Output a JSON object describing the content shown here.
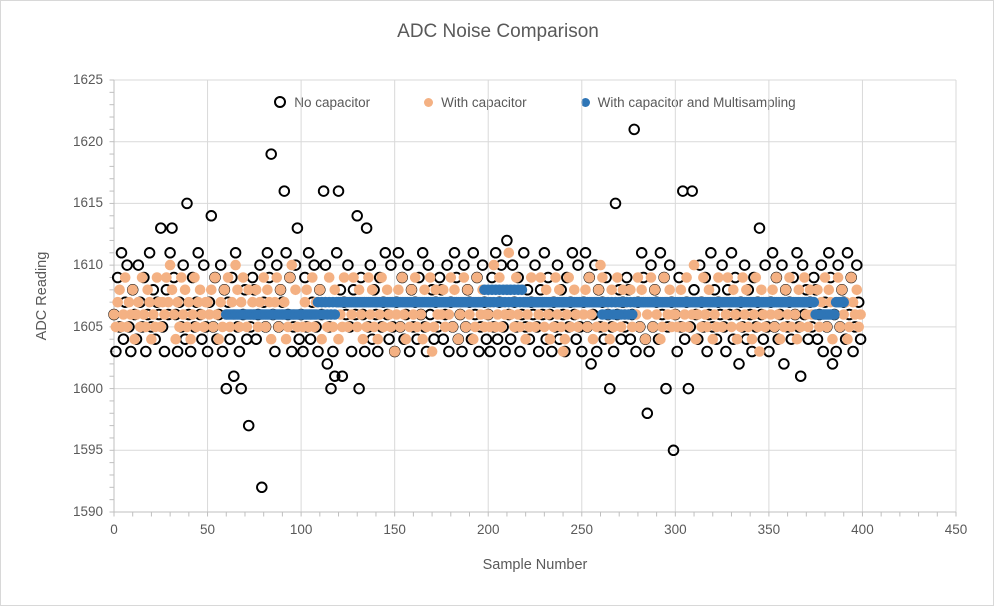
{
  "colors": {
    "background": "#FFFFFF",
    "border": "#D8D8D8",
    "text": "#595959",
    "grid": "#D9D9D9",
    "axis": "#BFBFBF",
    "series_no_capacitor": "#000000",
    "series_with_capacitor": "#F4B183",
    "series_multisampling": "#2E75B6"
  },
  "chart_data": {
    "type": "scatter",
    "title": "ADC Noise Comparison",
    "xlabel": "Sample Number",
    "ylabel": "ADC Reading",
    "xlim": [
      0,
      450
    ],
    "ylim": [
      1590,
      1625
    ],
    "x_major_ticks": [
      0,
      50,
      100,
      150,
      200,
      250,
      300,
      350,
      400,
      450
    ],
    "y_major_ticks": [
      1590,
      1595,
      1600,
      1605,
      1610,
      1615,
      1620,
      1625
    ],
    "x_minor_step": 10,
    "y_minor_step": 1,
    "grid": true,
    "legend_position": "top-center",
    "series": [
      {
        "name": "No capacitor",
        "marker": "open-circle",
        "color": "#000000",
        "x_start": 0,
        "x_step": 1,
        "values": [
          1606,
          1603,
          1609,
          1605,
          1611,
          1604,
          1607,
          1610,
          1605,
          1603,
          1608,
          1606,
          1604,
          1610,
          1607,
          1605,
          1609,
          1603,
          1606,
          1611,
          1605,
          1608,
          1604,
          1607,
          1606,
          1613,
          1605,
          1603,
          1608,
          1606,
          1611,
          1613,
          1609,
          1606,
          1603,
          1607,
          1605,
          1610,
          1604,
          1615,
          1606,
          1603,
          1609,
          1605,
          1607,
          1611,
          1606,
          1604,
          1610,
          1605,
          1603,
          1607,
          1614,
          1605,
          1609,
          1604,
          1606,
          1610,
          1603,
          1608,
          1600,
          1607,
          1604,
          1609,
          1601,
          1611,
          1605,
          1603,
          1600,
          1606,
          1608,
          1604,
          1597,
          1605,
          1609,
          1608,
          1604,
          1606,
          1610,
          1592,
          1607,
          1605,
          1611,
          1609,
          1619,
          1606,
          1603,
          1610,
          1605,
          1608,
          1607,
          1616,
          1611,
          1606,
          1609,
          1603,
          1605,
          1610,
          1613,
          1604,
          1606,
          1603,
          1609,
          1605,
          1611,
          1604,
          1607,
          1610,
          1605,
          1603,
          1608,
          1606,
          1616,
          1610,
          1602,
          1605,
          1600,
          1603,
          1601,
          1611,
          1616,
          1608,
          1601,
          1607,
          1606,
          1610,
          1605,
          1603,
          1608,
          1606,
          1614,
          1600,
          1609,
          1606,
          1603,
          1613,
          1605,
          1610,
          1604,
          1608,
          1606,
          1603,
          1609,
          1605,
          1607,
          1611,
          1606,
          1604,
          1610,
          1605,
          1603,
          1607,
          1611,
          1605,
          1609,
          1604,
          1606,
          1610,
          1603,
          1608,
          1605,
          1607,
          1604,
          1609,
          1606,
          1611,
          1605,
          1603,
          1610,
          1606,
          1608,
          1604,
          1607,
          1605,
          1609,
          1608,
          1604,
          1606,
          1610,
          1603,
          1607,
          1605,
          1611,
          1609,
          1604,
          1606,
          1603,
          1610,
          1605,
          1608,
          1607,
          1604,
          1611,
          1606,
          1609,
          1603,
          1605,
          1610,
          1607,
          1604,
          1606,
          1603,
          1609,
          1605,
          1611,
          1604,
          1607,
          1610,
          1605,
          1603,
          1612,
          1606,
          1604,
          1610,
          1607,
          1605,
          1609,
          1603,
          1606,
          1611,
          1605,
          1608,
          1604,
          1607,
          1606,
          1610,
          1605,
          1603,
          1608,
          1606,
          1611,
          1604,
          1609,
          1606,
          1603,
          1607,
          1605,
          1610,
          1604,
          1608,
          1606,
          1603,
          1609,
          1605,
          1607,
          1611,
          1606,
          1604,
          1610,
          1605,
          1603,
          1607,
          1611,
          1605,
          1609,
          1602,
          1606,
          1610,
          1603,
          1608,
          1605,
          1607,
          1604,
          1609,
          1606,
          1600,
          1605,
          1603,
          1615,
          1606,
          1608,
          1604,
          1607,
          1605,
          1609,
          1608,
          1604,
          1606,
          1621,
          1603,
          1607,
          1605,
          1611,
          1609,
          1604,
          1598,
          1603,
          1610,
          1605,
          1608,
          1607,
          1604,
          1611,
          1606,
          1609,
          1600,
          1605,
          1610,
          1607,
          1595,
          1606,
          1603,
          1609,
          1605,
          1616,
          1604,
          1607,
          1600,
          1605,
          1616,
          1608,
          1606,
          1604,
          1610,
          1607,
          1605,
          1609,
          1603,
          1606,
          1611,
          1605,
          1608,
          1604,
          1607,
          1606,
          1610,
          1605,
          1603,
          1608,
          1606,
          1611,
          1604,
          1609,
          1606,
          1602,
          1607,
          1605,
          1610,
          1604,
          1608,
          1606,
          1603,
          1609,
          1605,
          1607,
          1613,
          1606,
          1604,
          1610,
          1605,
          1603,
          1607,
          1611,
          1605,
          1609,
          1604,
          1606,
          1610,
          1602,
          1608,
          1605,
          1607,
          1604,
          1609,
          1606,
          1611,
          1605,
          1601,
          1610,
          1606,
          1608,
          1604,
          1607,
          1605,
          1609,
          1608,
          1604,
          1606,
          1610,
          1603,
          1607,
          1605,
          1611,
          1609,
          1602,
          1606,
          1603,
          1610,
          1605,
          1608,
          1607,
          1604,
          1611,
          1606,
          1609,
          1603,
          1605,
          1610,
          1607,
          1604
        ]
      },
      {
        "name": "With capacitor",
        "marker": "filled-circle",
        "color": "#F4B183",
        "x_start": 0,
        "x_step": 1,
        "values": [
          1606,
          1605,
          1607,
          1608,
          1605,
          1606,
          1609,
          1605,
          1607,
          1606,
          1608,
          1604,
          1606,
          1607,
          1605,
          1609,
          1606,
          1605,
          1608,
          1607,
          1604,
          1606,
          1605,
          1609,
          1607,
          1605,
          1607,
          1606,
          1609,
          1607,
          1610,
          1608,
          1606,
          1604,
          1607,
          1605,
          1609,
          1606,
          1608,
          1605,
          1607,
          1604,
          1606,
          1609,
          1605,
          1607,
          1608,
          1606,
          1605,
          1607,
          1607,
          1606,
          1608,
          1605,
          1609,
          1606,
          1604,
          1607,
          1605,
          1608,
          1606,
          1609,
          1605,
          1607,
          1606,
          1610,
          1608,
          1605,
          1607,
          1609,
          1606,
          1605,
          1608,
          1606,
          1607,
          1606,
          1608,
          1605,
          1607,
          1606,
          1609,
          1605,
          1608,
          1607,
          1604,
          1606,
          1607,
          1609,
          1605,
          1608,
          1606,
          1607,
          1604,
          1605,
          1609,
          1610,
          1606,
          1608,
          1605,
          1606,
          1606,
          1605,
          1607,
          1608,
          1605,
          1606,
          1609,
          1605,
          1607,
          1606,
          1608,
          1604,
          1606,
          1607,
          1605,
          1609,
          1606,
          1605,
          1608,
          1607,
          1604,
          1606,
          1605,
          1609,
          1607,
          1605,
          1607,
          1606,
          1609,
          1607,
          1605,
          1608,
          1606,
          1604,
          1607,
          1605,
          1609,
          1606,
          1608,
          1605,
          1607,
          1604,
          1606,
          1609,
          1605,
          1607,
          1608,
          1606,
          1605,
          1607,
          1603,
          1606,
          1608,
          1605,
          1609,
          1606,
          1604,
          1607,
          1605,
          1608,
          1606,
          1609,
          1605,
          1607,
          1606,
          1604,
          1608,
          1605,
          1607,
          1609,
          1603,
          1605,
          1608,
          1606,
          1607,
          1606,
          1608,
          1605,
          1607,
          1606,
          1609,
          1605,
          1608,
          1607,
          1604,
          1606,
          1607,
          1609,
          1605,
          1608,
          1606,
          1607,
          1604,
          1605,
          1609,
          1607,
          1606,
          1608,
          1605,
          1606,
          1606,
          1605,
          1607,
          1610,
          1605,
          1606,
          1609,
          1605,
          1607,
          1606,
          1608,
          1611,
          1606,
          1607,
          1605,
          1609,
          1606,
          1605,
          1608,
          1607,
          1604,
          1606,
          1605,
          1609,
          1607,
          1605,
          1607,
          1606,
          1609,
          1607,
          1605,
          1608,
          1606,
          1604,
          1607,
          1605,
          1609,
          1606,
          1608,
          1605,
          1603,
          1604,
          1606,
          1609,
          1605,
          1607,
          1608,
          1606,
          1605,
          1607,
          1607,
          1606,
          1608,
          1605,
          1609,
          1606,
          1604,
          1607,
          1605,
          1608,
          1610,
          1609,
          1605,
          1607,
          1606,
          1604,
          1608,
          1605,
          1607,
          1609,
          1606,
          1605,
          1608,
          1606,
          1607,
          1606,
          1608,
          1605,
          1607,
          1606,
          1609,
          1605,
          1608,
          1607,
          1604,
          1606,
          1607,
          1609,
          1605,
          1608,
          1606,
          1607,
          1604,
          1605,
          1609,
          1607,
          1606,
          1608,
          1605,
          1606,
          1606,
          1605,
          1607,
          1608,
          1605,
          1606,
          1609,
          1605,
          1607,
          1606,
          1610,
          1604,
          1606,
          1607,
          1605,
          1609,
          1606,
          1605,
          1608,
          1607,
          1604,
          1606,
          1605,
          1609,
          1607,
          1605,
          1607,
          1606,
          1609,
          1607,
          1605,
          1608,
          1606,
          1604,
          1607,
          1605,
          1609,
          1606,
          1608,
          1605,
          1607,
          1604,
          1606,
          1609,
          1605,
          1603,
          1608,
          1606,
          1605,
          1607,
          1607,
          1606,
          1608,
          1605,
          1609,
          1606,
          1604,
          1607,
          1605,
          1608,
          1606,
          1609,
          1605,
          1607,
          1606,
          1604,
          1608,
          1605,
          1607,
          1609,
          1606,
          1605,
          1608,
          1606,
          1607,
          1606,
          1608,
          1605,
          1607,
          1606,
          1609,
          1605,
          1608,
          1607,
          1604,
          1606,
          1607,
          1609,
          1605,
          1608,
          1606,
          1607,
          1604,
          1605,
          1609,
          1607,
          1606,
          1608,
          1605,
          1606
        ]
      },
      {
        "name": "With capacitor and Multisampling",
        "marker": "filled-circle",
        "color": "#2E75B6",
        "x_start": 60,
        "x_step": 1,
        "values": [
          1606,
          1606,
          1606,
          1606,
          1606,
          1606,
          1606,
          1606,
          1606,
          1606,
          1606,
          1606,
          1606,
          1606,
          1606,
          1606,
          1606,
          1606,
          1606,
          1606,
          1606,
          1606,
          1606,
          1606,
          1606,
          1606,
          1606,
          1606,
          1606,
          1606,
          1606,
          1606,
          1606,
          1606,
          1606,
          1606,
          1606,
          1606,
          1606,
          1606,
          1606,
          1606,
          1606,
          1606,
          1606,
          1606,
          1606,
          1606,
          1606,
          1607,
          1606,
          1607,
          1606,
          1607,
          1606,
          1607,
          1606,
          1607,
          1606,
          1607,
          1607,
          1607,
          1607,
          1607,
          1607,
          1607,
          1607,
          1607,
          1607,
          1607,
          1607,
          1607,
          1607,
          1607,
          1607,
          1607,
          1607,
          1607,
          1607,
          1607,
          1607,
          1607,
          1607,
          1607,
          1607,
          1607,
          1607,
          1607,
          1607,
          1607,
          1607,
          1607,
          1607,
          1607,
          1607,
          1607,
          1607,
          1607,
          1607,
          1607,
          1607,
          1607,
          1607,
          1607,
          1607,
          1607,
          1607,
          1607,
          1607,
          1607,
          1607,
          1607,
          1607,
          1607,
          1607,
          1607,
          1607,
          1607,
          1607,
          1607,
          1607,
          1607,
          1607,
          1607,
          1607,
          1607,
          1607,
          1607,
          1607,
          1607,
          1607,
          1607,
          1607,
          1607,
          1607,
          1607,
          1607,
          1607,
          1608,
          1607,
          1608,
          1607,
          1608,
          1607,
          1608,
          1607,
          1608,
          1607,
          1608,
          1607,
          1608,
          1607,
          1608,
          1607,
          1608,
          1607,
          1608,
          1607,
          1608,
          1607,
          1607,
          1607,
          1607,
          1607,
          1607,
          1607,
          1607,
          1607,
          1607,
          1607,
          1607,
          1607,
          1607,
          1607,
          1607,
          1607,
          1607,
          1607,
          1607,
          1607,
          1607,
          1607,
          1607,
          1607,
          1607,
          1607,
          1607,
          1607,
          1607,
          1607,
          1607,
          1607,
          1607,
          1607,
          1607,
          1607,
          1607,
          1607,
          1607,
          1607,
          1607,
          1606,
          1607,
          1606,
          1607,
          1606,
          1607,
          1606,
          1607,
          1606,
          1607,
          1606,
          1607,
          1606,
          1607,
          1606,
          1607,
          1606,
          1607,
          1607,
          1607,
          1607,
          1607,
          1607,
          1607,
          1607,
          1607,
          1607,
          1607,
          1607,
          1607,
          1607,
          1607,
          1607,
          1607,
          1607,
          1607,
          1607,
          1607,
          1607,
          1607,
          1607,
          1607,
          1607,
          1607,
          1607,
          1607,
          1607,
          1607,
          1607,
          1607,
          1607,
          1607,
          1607,
          1607,
          1607,
          1607,
          1607,
          1607,
          1607,
          1607,
          1607,
          1607,
          1607,
          1607,
          1607,
          1607,
          1607,
          1607,
          1607,
          1607,
          1607,
          1607,
          1607,
          1607,
          1607,
          1607,
          1607,
          1607,
          1607,
          1607,
          1607,
          1607,
          1607,
          1607,
          1607,
          1607,
          1607,
          1607,
          1607,
          1607,
          1607,
          1607,
          1607,
          1607,
          1607,
          1607,
          1607,
          1607,
          1607,
          1607,
          1607,
          1607,
          1607,
          1607,
          1607,
          1607,
          1607,
          1607,
          1607,
          1607,
          1607,
          1607,
          1607,
          1607,
          1606,
          1606,
          1606,
          1606,
          1606,
          1606,
          1606,
          1606,
          1606,
          1606,
          1606,
          1607,
          1607,
          1607,
          1607,
          1607
        ]
      }
    ]
  }
}
